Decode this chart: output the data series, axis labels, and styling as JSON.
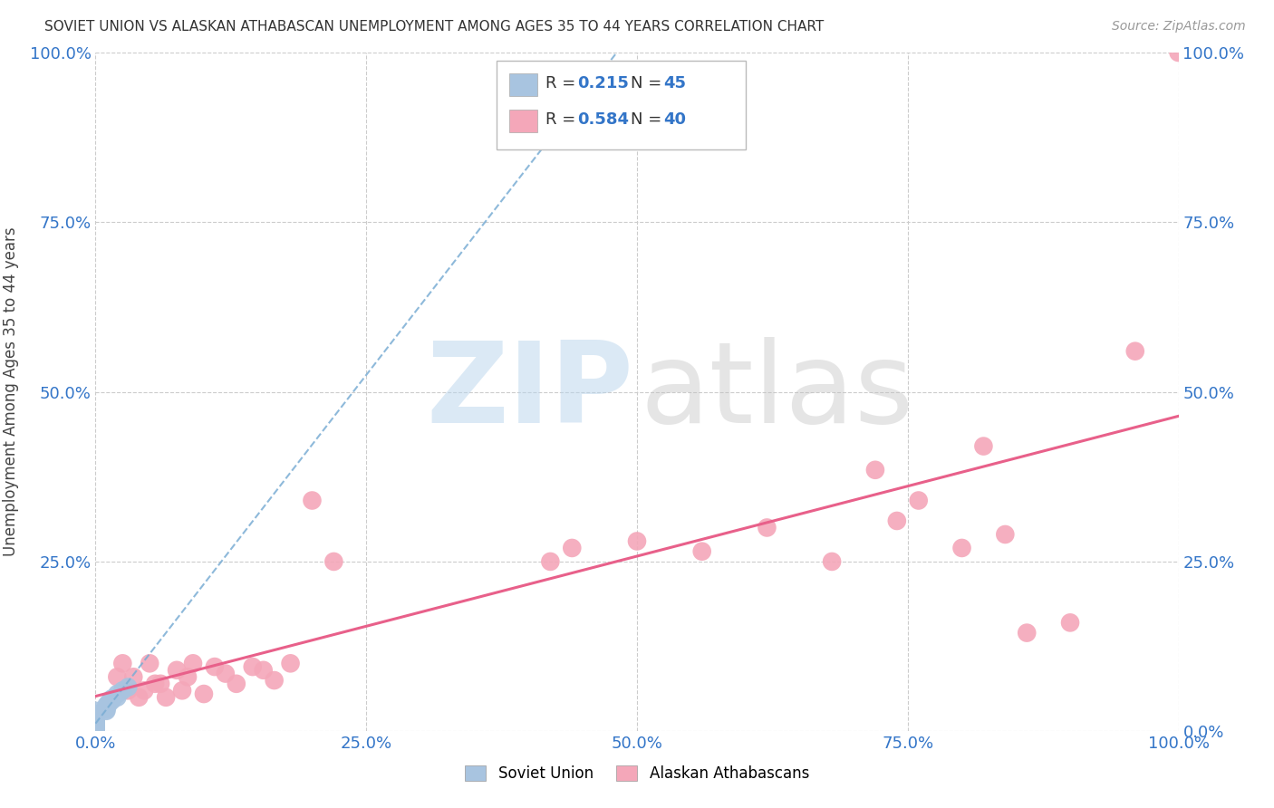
{
  "title": "SOVIET UNION VS ALASKAN ATHABASCAN UNEMPLOYMENT AMONG AGES 35 TO 44 YEARS CORRELATION CHART",
  "source": "Source: ZipAtlas.com",
  "ylabel": "Unemployment Among Ages 35 to 44 years",
  "R_soviet": 0.215,
  "N_soviet": 45,
  "R_athabascan": 0.584,
  "N_athabascan": 40,
  "soviet_x": [
    0.0,
    0.0,
    0.0,
    0.0,
    0.0,
    0.0,
    0.0,
    0.0,
    0.0,
    0.0,
    0.0,
    0.0,
    0.0,
    0.0,
    0.0,
    0.0,
    0.0,
    0.0,
    0.0,
    0.0,
    0.0,
    0.0,
    0.0,
    0.0,
    0.0,
    0.0,
    0.0,
    0.0,
    0.0,
    0.0,
    0.0,
    0.0,
    0.0,
    0.01,
    0.01,
    0.01,
    0.01,
    0.012,
    0.012,
    0.015,
    0.015,
    0.02,
    0.02,
    0.025,
    0.03
  ],
  "soviet_y": [
    0.0,
    0.0,
    0.0,
    0.0,
    0.0,
    0.0,
    0.0,
    0.0,
    0.0,
    0.005,
    0.005,
    0.007,
    0.007,
    0.008,
    0.01,
    0.01,
    0.01,
    0.01,
    0.012,
    0.012,
    0.015,
    0.015,
    0.015,
    0.018,
    0.018,
    0.02,
    0.02,
    0.02,
    0.022,
    0.025,
    0.025,
    0.025,
    0.03,
    0.03,
    0.032,
    0.035,
    0.038,
    0.04,
    0.042,
    0.045,
    0.048,
    0.05,
    0.055,
    0.06,
    0.065
  ],
  "athabascan_x": [
    0.02,
    0.025,
    0.03,
    0.035,
    0.04,
    0.045,
    0.05,
    0.055,
    0.06,
    0.065,
    0.075,
    0.08,
    0.085,
    0.09,
    0.1,
    0.11,
    0.12,
    0.13,
    0.145,
    0.155,
    0.165,
    0.18,
    0.2,
    0.22,
    0.42,
    0.44,
    0.5,
    0.56,
    0.62,
    0.68,
    0.72,
    0.74,
    0.76,
    0.8,
    0.82,
    0.84,
    0.86,
    0.9,
    0.96,
    1.0
  ],
  "athabascan_y": [
    0.08,
    0.1,
    0.06,
    0.08,
    0.05,
    0.06,
    0.1,
    0.07,
    0.07,
    0.05,
    0.09,
    0.06,
    0.08,
    0.1,
    0.055,
    0.095,
    0.085,
    0.07,
    0.095,
    0.09,
    0.075,
    0.1,
    0.34,
    0.25,
    0.25,
    0.27,
    0.28,
    0.265,
    0.3,
    0.25,
    0.385,
    0.31,
    0.34,
    0.27,
    0.42,
    0.29,
    0.145,
    0.16,
    0.56,
    1.0
  ],
  "soviet_color": "#a8c4e0",
  "athabascan_color": "#f4a7b9",
  "soviet_line_color": "#7aadd4",
  "athabascan_line_color": "#e8608a",
  "grid_color": "#cccccc",
  "background_color": "#ffffff",
  "xlim": [
    0.0,
    1.0
  ],
  "ylim": [
    0.0,
    1.0
  ],
  "xticks": [
    0.0,
    0.25,
    0.5,
    0.75,
    1.0
  ],
  "yticks": [
    0.0,
    0.25,
    0.5,
    0.75,
    1.0
  ],
  "xtick_labels": [
    "0.0%",
    "25.0%",
    "50.0%",
    "75.0%",
    "100.0%"
  ],
  "left_ytick_labels": [
    "",
    "25.0%",
    "50.0%",
    "75.0%",
    "100.0%"
  ],
  "right_ytick_labels": [
    "0.0%",
    "25.0%",
    "50.0%",
    "75.0%",
    "100.0%"
  ]
}
